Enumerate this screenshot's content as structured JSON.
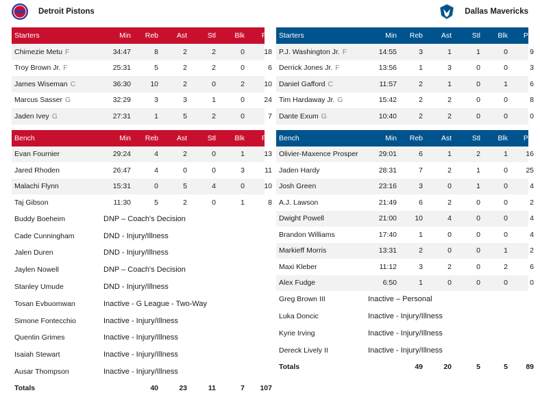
{
  "columns": [
    "Min",
    "Reb",
    "Ast",
    "Stl",
    "Blk",
    "Pts"
  ],
  "home": {
    "name": "Detroit Pistons",
    "logo_text": "DETROIT PISTONS",
    "starters_label": "Starters",
    "bench_label": "Bench",
    "starters": [
      {
        "name": "Chimezie Metu",
        "pos": "F",
        "min": "34:47",
        "reb": "8",
        "ast": "2",
        "stl": "2",
        "blk": "0",
        "pts": "18"
      },
      {
        "name": "Troy Brown Jr.",
        "pos": "F",
        "min": "25:31",
        "reb": "5",
        "ast": "2",
        "stl": "2",
        "blk": "0",
        "pts": "6"
      },
      {
        "name": "James Wiseman",
        "pos": "C",
        "min": "36:30",
        "reb": "10",
        "ast": "2",
        "stl": "0",
        "blk": "2",
        "pts": "10"
      },
      {
        "name": "Marcus Sasser",
        "pos": "G",
        "min": "32:29",
        "reb": "3",
        "ast": "3",
        "stl": "1",
        "blk": "0",
        "pts": "24"
      },
      {
        "name": "Jaden Ivey",
        "pos": "G",
        "min": "27:31",
        "reb": "1",
        "ast": "5",
        "stl": "2",
        "blk": "0",
        "pts": "7"
      }
    ],
    "bench": [
      {
        "name": "Evan Fournier",
        "pos": "",
        "min": "29:24",
        "reb": "4",
        "ast": "2",
        "stl": "0",
        "blk": "1",
        "pts": "13"
      },
      {
        "name": "Jared Rhoden",
        "pos": "",
        "min": "26:47",
        "reb": "4",
        "ast": "0",
        "stl": "0",
        "blk": "3",
        "pts": "11"
      },
      {
        "name": "Malachi Flynn",
        "pos": "",
        "min": "15:31",
        "reb": "0",
        "ast": "5",
        "stl": "4",
        "blk": "0",
        "pts": "10"
      },
      {
        "name": "Taj Gibson",
        "pos": "",
        "min": "11:30",
        "reb": "5",
        "ast": "2",
        "stl": "0",
        "blk": "1",
        "pts": "8"
      }
    ],
    "inactive": [
      {
        "name": "Buddy Boeheim",
        "status": "DNP – Coach's Decision"
      },
      {
        "name": "Cade Cunningham",
        "status": "DND - Injury/Illness"
      },
      {
        "name": "Jalen Duren",
        "status": "DND - Injury/Illness"
      },
      {
        "name": "Jaylen Nowell",
        "status": "DNP – Coach's Decision"
      },
      {
        "name": "Stanley Umude",
        "status": "DND - Injury/Illness"
      },
      {
        "name": "Tosan Evbuomwan",
        "status": "Inactive - G League - Two-Way"
      },
      {
        "name": "Simone Fontecchio",
        "status": "Inactive - Injury/Illness"
      },
      {
        "name": "Quentin Grimes",
        "status": "Inactive - Injury/Illness"
      },
      {
        "name": "Isaiah Stewart",
        "status": "Inactive - Injury/Illness"
      },
      {
        "name": "Ausar Thompson",
        "status": "Inactive - Injury/Illness"
      }
    ],
    "totals": {
      "label": "Totals",
      "min": "",
      "reb": "40",
      "ast": "23",
      "stl": "11",
      "blk": "7",
      "pts": "107"
    }
  },
  "away": {
    "name": "Dallas Mavericks",
    "starters_label": "Starters",
    "bench_label": "Bench",
    "starters": [
      {
        "name": "P.J. Washington Jr.",
        "pos": "F",
        "min": "14:55",
        "reb": "3",
        "ast": "1",
        "stl": "1",
        "blk": "0",
        "pts": "9"
      },
      {
        "name": "Derrick Jones Jr.",
        "pos": "F",
        "min": "13:56",
        "reb": "1",
        "ast": "3",
        "stl": "0",
        "blk": "0",
        "pts": "3"
      },
      {
        "name": "Daniel Gafford",
        "pos": "C",
        "min": "11:57",
        "reb": "2",
        "ast": "1",
        "stl": "0",
        "blk": "1",
        "pts": "6"
      },
      {
        "name": "Tim Hardaway Jr.",
        "pos": "G",
        "min": "15:42",
        "reb": "2",
        "ast": "2",
        "stl": "0",
        "blk": "0",
        "pts": "8"
      },
      {
        "name": "Dante Exum",
        "pos": "G",
        "min": "10:40",
        "reb": "2",
        "ast": "2",
        "stl": "0",
        "blk": "0",
        "pts": "0"
      }
    ],
    "bench": [
      {
        "name": "Olivier-Maxence Prosper",
        "pos": "",
        "min": "29:01",
        "reb": "6",
        "ast": "1",
        "stl": "2",
        "blk": "1",
        "pts": "16"
      },
      {
        "name": "Jaden Hardy",
        "pos": "",
        "min": "28:31",
        "reb": "7",
        "ast": "2",
        "stl": "1",
        "blk": "0",
        "pts": "25"
      },
      {
        "name": "Josh Green",
        "pos": "",
        "min": "23:16",
        "reb": "3",
        "ast": "0",
        "stl": "1",
        "blk": "0",
        "pts": "4"
      },
      {
        "name": "A.J. Lawson",
        "pos": "",
        "min": "21:49",
        "reb": "6",
        "ast": "2",
        "stl": "0",
        "blk": "0",
        "pts": "2"
      },
      {
        "name": "Dwight Powell",
        "pos": "",
        "min": "21:00",
        "reb": "10",
        "ast": "4",
        "stl": "0",
        "blk": "0",
        "pts": "4"
      },
      {
        "name": "Brandon Williams",
        "pos": "",
        "min": "17:40",
        "reb": "1",
        "ast": "0",
        "stl": "0",
        "blk": "0",
        "pts": "4"
      },
      {
        "name": "Markieff Morris",
        "pos": "",
        "min": "13:31",
        "reb": "2",
        "ast": "0",
        "stl": "0",
        "blk": "1",
        "pts": "2"
      },
      {
        "name": "Maxi Kleber",
        "pos": "",
        "min": "11:12",
        "reb": "3",
        "ast": "2",
        "stl": "0",
        "blk": "2",
        "pts": "6"
      },
      {
        "name": "Alex Fudge",
        "pos": "",
        "min": "6:50",
        "reb": "1",
        "ast": "0",
        "stl": "0",
        "blk": "0",
        "pts": "0"
      }
    ],
    "inactive": [
      {
        "name": "Greg Brown III",
        "status": "Inactive – Personal"
      },
      {
        "name": "Luka Doncic",
        "status": "Inactive - Injury/Illness"
      },
      {
        "name": "Kyrie Irving",
        "status": "Inactive - Injury/Illness"
      },
      {
        "name": "Dereck Lively II",
        "status": "Inactive - Injury/Illness"
      }
    ],
    "totals": {
      "label": "Totals",
      "min": "",
      "reb": "49",
      "ast": "20",
      "stl": "5",
      "blk": "5",
      "pts": "89"
    }
  },
  "colors": {
    "home": "#c8102e",
    "away": "#00538c",
    "alt_row": "#f2f2f2"
  },
  "icons": {
    "home_logo": "pistons-logo-icon",
    "away_logo": "mavericks-logo-icon"
  }
}
